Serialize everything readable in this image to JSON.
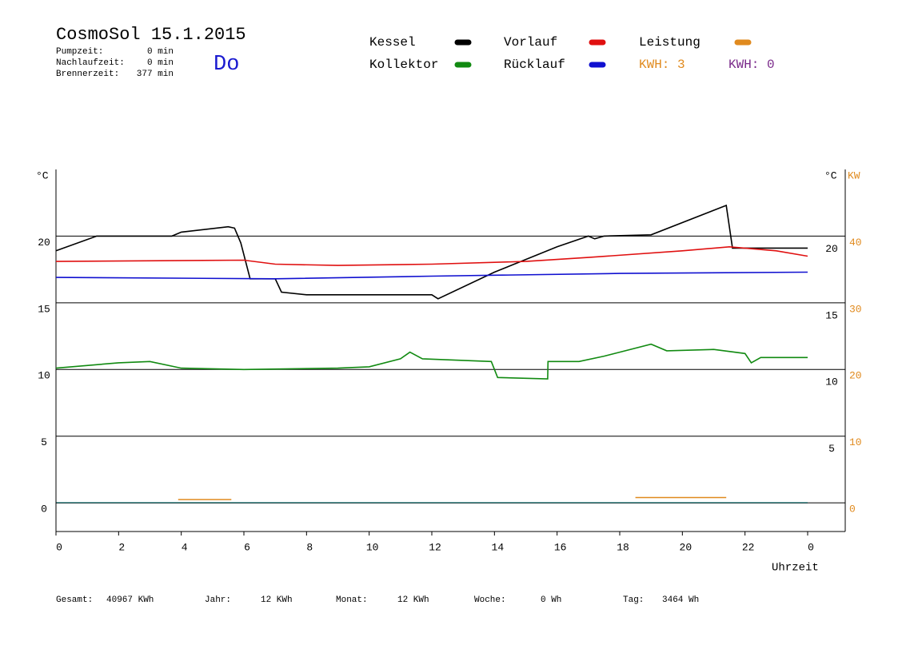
{
  "chart_data": {
    "type": "line",
    "title": "CosmoSol 15.1.2015",
    "info": [
      {
        "label": "Pumpzeit:",
        "value": "0 min"
      },
      {
        "label": "Nachlaufzeit:",
        "value": "0 min"
      },
      {
        "label": "Brennerzeit:",
        "value": "377 min"
      }
    ],
    "weekday": "Do",
    "kwh": [
      {
        "text": "KWH: 3",
        "color": "#e08a1e"
      },
      {
        "text": "KWH: 0",
        "color": "#7a2a8a"
      }
    ],
    "y_unit": "°C",
    "y_unit_right": "°C",
    "y2_unit": "KW",
    "x_label": "Uhrzeit",
    "xlim": [
      0,
      25.2
    ],
    "xticks": [
      0,
      2,
      4,
      6,
      8,
      10,
      12,
      14,
      16,
      18,
      20,
      22,
      {
        "value": 24,
        "label": "0"
      }
    ],
    "ylim": [
      -2.15,
      25
    ],
    "yticks": [
      0,
      5,
      10,
      15,
      20
    ],
    "yticks_right": [
      5,
      10,
      15,
      20
    ],
    "y2lim": [
      -4.3,
      50
    ],
    "y2ticks": [
      0,
      10,
      20,
      30,
      40
    ],
    "y2color": "#e08a1e",
    "grid": true,
    "series": [
      {
        "name": "Kessel",
        "color": "#000000",
        "x": [
          0,
          1.3,
          3.7,
          4,
          5.5,
          5.7,
          5.9,
          6.2,
          7,
          7.2,
          8,
          12,
          12.2,
          14,
          16,
          17,
          17.2,
          17.5,
          19,
          21.4,
          21.6,
          24
        ],
        "values": [
          18.9,
          20,
          20,
          20.3,
          20.7,
          20.6,
          19.5,
          16.8,
          16.8,
          15.8,
          15.6,
          15.6,
          15.3,
          17.3,
          19.2,
          20,
          19.8,
          20,
          20.1,
          22.3,
          19.1,
          19.1
        ]
      },
      {
        "name": "Kollektor",
        "color": "#118a11",
        "x": [
          0,
          2,
          3,
          4,
          6,
          9,
          10,
          11,
          11.3,
          11.7,
          13.9,
          14.1,
          15.7,
          15.71,
          16.7,
          17.5,
          18,
          19,
          19.5,
          21,
          22,
          22.2,
          22.5,
          24
        ],
        "values": [
          10.1,
          10.5,
          10.6,
          10.1,
          10,
          10.1,
          10.2,
          10.8,
          11.3,
          10.8,
          10.6,
          9.4,
          9.3,
          10.6,
          10.6,
          11,
          11.3,
          11.9,
          11.4,
          11.5,
          11.2,
          10.5,
          10.9,
          10.9
        ]
      },
      {
        "name": "Vorlauf",
        "color": "#e01010",
        "x": [
          0,
          6,
          7,
          9,
          12,
          15,
          17,
          20,
          21.5,
          23,
          24
        ],
        "values": [
          18.1,
          18.2,
          17.9,
          17.8,
          17.9,
          18.1,
          18.4,
          18.9,
          19.2,
          18.9,
          18.5
        ]
      },
      {
        "name": "Rücklauf",
        "color": "#1010d0",
        "x": [
          0,
          7,
          12,
          18,
          24
        ],
        "values": [
          16.9,
          16.8,
          17,
          17.2,
          17.3
        ]
      },
      {
        "name": "Leistung",
        "color": "#e08a1e",
        "axis": "y2",
        "x": [
          3.9,
          5.6,
          5.7,
          18.5,
          21.4
        ],
        "values": [
          0.5,
          0.5,
          null,
          0.8,
          0.8
        ]
      }
    ],
    "totals": [
      {
        "label": "Gesamt:",
        "value": "40967 KWh"
      },
      {
        "label": "Jahr:",
        "value": "12 KWh"
      },
      {
        "label": "Monat:",
        "value": "12 KWh"
      },
      {
        "label": "Woche:",
        "value": "0 Wh"
      },
      {
        "label": "Tag:",
        "value": "3464 Wh"
      }
    ]
  }
}
